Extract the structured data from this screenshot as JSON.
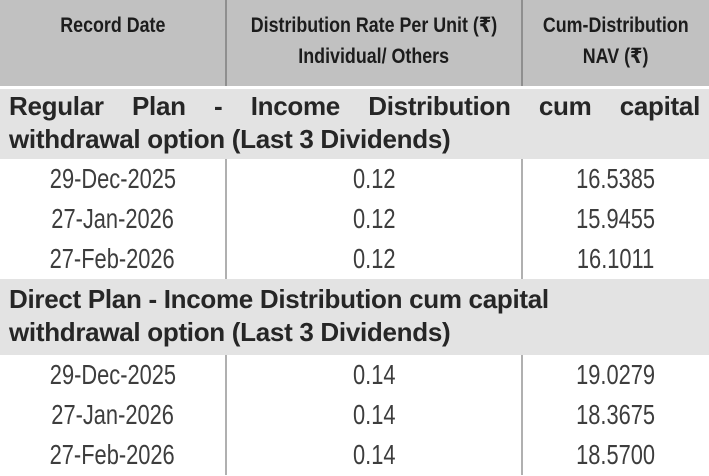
{
  "header": {
    "columns": [
      {
        "line1": "Record Date",
        "line2": ""
      },
      {
        "line1": "Distribution Rate Per Unit  (₹)",
        "line2": "Individual/ Others"
      },
      {
        "line1": "Cum-Distribution",
        "line2": "NAV (₹)"
      }
    ]
  },
  "sections": [
    {
      "title_line1": "Regular Plan - Income Distribution cum capital",
      "title_line2": "withdrawal option (Last 3 Dividends)",
      "rows": [
        {
          "record_date": "29-Dec-2025",
          "rate": "0.12",
          "nav": "16.5385"
        },
        {
          "record_date": "27-Jan-2026",
          "rate": "0.12",
          "nav": "15.9455"
        },
        {
          "record_date": "27-Feb-2026",
          "rate": "0.12",
          "nav": "16.1011"
        }
      ]
    },
    {
      "title_line1": "Direct Plan - Income Distribution cum capital",
      "title_line2": "withdrawal option (Last 3 Dividends)",
      "rows": [
        {
          "record_date": "29-Dec-2025",
          "rate": "0.14",
          "nav": "19.0279"
        },
        {
          "record_date": "27-Jan-2026",
          "rate": "0.14",
          "nav": "18.3675"
        },
        {
          "record_date": "27-Feb-2026",
          "rate": "0.14",
          "nav": "18.5700"
        }
      ]
    }
  ],
  "colors": {
    "header_bg": "#c1c1c1",
    "section_bg": "#e3e3e3",
    "row_bg": "#ffffff",
    "header_divider": "#8f8f8f",
    "body_divider": "#b0b0b0",
    "heading_text": "#1c1c1c",
    "data_text": "#3d3d3d"
  }
}
